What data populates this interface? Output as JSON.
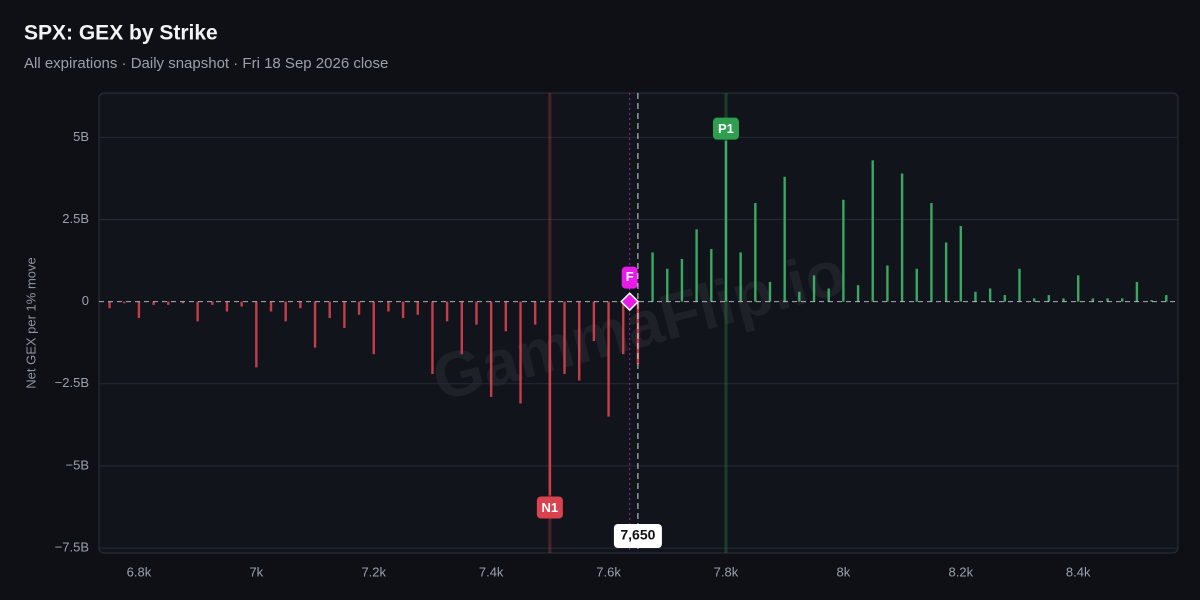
{
  "chart_data": {
    "type": "bar",
    "title": "SPX: GEX by Strike",
    "subtitle": "All expirations · Daily snapshot · Fri 18 Sep 2026 close",
    "y_label": "Net GEX per 1% move",
    "watermark": "GammaFlip.io",
    "x": [
      6750,
      6775,
      6800,
      6825,
      6850,
      6875,
      6900,
      6925,
      6950,
      6975,
      7000,
      7025,
      7050,
      7075,
      7100,
      7125,
      7150,
      7175,
      7200,
      7225,
      7250,
      7275,
      7300,
      7325,
      7350,
      7375,
      7400,
      7425,
      7450,
      7475,
      7500,
      7525,
      7550,
      7575,
      7600,
      7625,
      7650,
      7675,
      7700,
      7725,
      7750,
      7775,
      7800,
      7825,
      7850,
      7875,
      7900,
      7925,
      7950,
      7975,
      8000,
      8025,
      8050,
      8075,
      8100,
      8125,
      8150,
      8175,
      8200,
      8225,
      8250,
      8275,
      8300,
      8325,
      8350,
      8375,
      8400,
      8425,
      8450,
      8475,
      8500,
      8525,
      8550
    ],
    "values": [
      -0.2,
      -0.05,
      -0.5,
      -0.1,
      -0.1,
      -0.05,
      -0.6,
      -0.1,
      -0.3,
      -0.15,
      -2.0,
      -0.3,
      -0.6,
      -0.2,
      -1.4,
      -0.5,
      -0.8,
      -0.4,
      -1.6,
      -0.3,
      -0.5,
      -0.4,
      -2.2,
      -0.6,
      -1.6,
      -0.7,
      -2.9,
      -0.9,
      -3.1,
      -0.7,
      -5.9,
      -2.2,
      -2.4,
      -1.2,
      -3.5,
      -1.6,
      -1.9,
      1.5,
      1.0,
      1.3,
      2.2,
      1.6,
      4.9,
      1.5,
      3.0,
      0.6,
      3.8,
      0.3,
      0.8,
      0.4,
      3.1,
      0.5,
      4.3,
      1.1,
      3.9,
      1.0,
      3.0,
      1.8,
      2.3,
      0.3,
      0.4,
      0.2,
      1.0,
      0.1,
      0.2,
      0.1,
      0.8,
      0.1,
      0.1,
      0.1,
      0.6,
      0.05,
      0.2
    ],
    "positive_color": "#3fb86a",
    "negative_color": "#d9434f",
    "xlim": [
      6732,
      8570
    ],
    "xticks": [
      {
        "value": 6800,
        "label": "6.8k"
      },
      {
        "value": 7000,
        "label": "7k"
      },
      {
        "value": 7200,
        "label": "7.2k"
      },
      {
        "value": 7400,
        "label": "7.4k"
      },
      {
        "value": 7600,
        "label": "7.6k"
      },
      {
        "value": 7800,
        "label": "7.8k"
      },
      {
        "value": 8000,
        "label": "8k"
      },
      {
        "value": 8200,
        "label": "8.2k"
      },
      {
        "value": 8400,
        "label": "8.4k"
      }
    ],
    "ylim": [
      -7.65,
      6.35
    ],
    "yticks": [
      {
        "value": -7.5,
        "label": "−7.5B"
      },
      {
        "value": -5,
        "label": "−5B"
      },
      {
        "value": -2.5,
        "label": "−2.5B"
      },
      0,
      {
        "value": 2.5,
        "label": "2.5B"
      },
      {
        "value": 5,
        "label": "5B"
      }
    ],
    "grid": true,
    "markers": [
      {
        "label": "N1",
        "x": 7500,
        "color": "#d9434f"
      },
      {
        "label": "P1",
        "x": 7800,
        "color": "#2e9e4f"
      }
    ],
    "flip": {
      "label": "F",
      "x": 7636,
      "color": "#e81ce8"
    },
    "spot": {
      "value": 7650,
      "label": "7,650"
    }
  }
}
